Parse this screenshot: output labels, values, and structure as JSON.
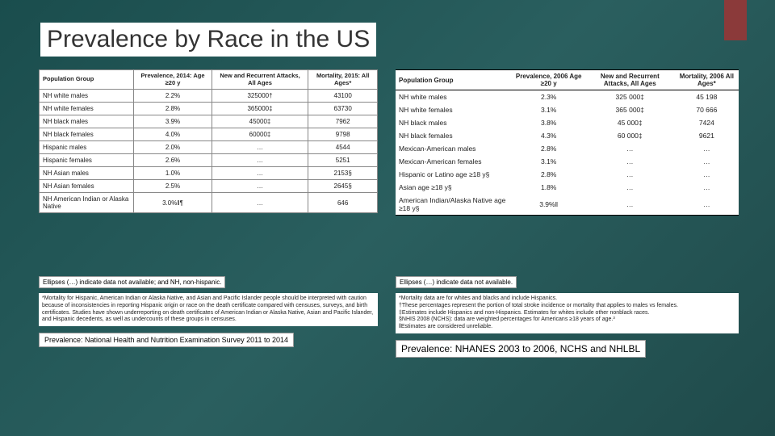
{
  "slide": {
    "title": "Prevalence by Race in the US"
  },
  "left": {
    "headers": [
      "Population Group",
      "Prevalence, 2014: Age ≥20 y",
      "New and Recurrent Attacks, All Ages",
      "Mortality, 2015: All Ages*"
    ],
    "rows": [
      [
        "NH white males",
        "2.2%",
        "325000†",
        "43100"
      ],
      [
        "NH white females",
        "2.8%",
        "365000‡",
        "63730"
      ],
      [
        "NH black males",
        "3.9%",
        "45000‡",
        "7962"
      ],
      [
        "NH black females",
        "4.0%",
        "60000‡",
        "9798"
      ],
      [
        "Hispanic males",
        "2.0%",
        "…",
        "4544"
      ],
      [
        "Hispanic females",
        "2.6%",
        "…",
        "5251"
      ],
      [
        "NH Asian males",
        "1.0%",
        "…",
        "2153§"
      ],
      [
        "NH Asian females",
        "2.5%",
        "…",
        "2645§"
      ],
      [
        "NH American Indian or Alaska Native",
        "3.0%‖¶",
        "…",
        "646"
      ]
    ],
    "ellipses_note": "Ellipses (…) indicate data not available; and NH, non-hispanic.",
    "footnotes": "*Mortality for Hispanic, American Indian or Alaska Native, and Asian and Pacific Islander people should be interpreted with caution because of inconsistencies in reporting Hispanic origin or race on the death certificate compared with censuses, surveys, and birth certificates. Studies have shown underreporting on death certificates of American Indian or Alaska Native, Asian and Pacific Islander, and Hispanic decedents, as well as undercounts of these groups in censuses.",
    "source": "Prevalence: National Health and Nutrition Examination Survey 2011 to 2014"
  },
  "right": {
    "headers": [
      "Population Group",
      "Prevalence, 2006 Age ≥20 y",
      "New and Recurrent Attacks, All Ages",
      "Mortality, 2006 All Ages*"
    ],
    "rows": [
      [
        "NH white males",
        "2.3%",
        "325 000‡",
        "45 198"
      ],
      [
        "NH white females",
        "3.1%",
        "365 000‡",
        "70 666"
      ],
      [
        "NH black males",
        "3.8%",
        "45 000‡",
        "7424"
      ],
      [
        "NH black females",
        "4.3%",
        "60 000‡",
        "9621"
      ],
      [
        "Mexican-American males",
        "2.8%",
        "…",
        "…"
      ],
      [
        "Mexican-American females",
        "3.1%",
        "…",
        "…"
      ],
      [
        "Hispanic or Latino age ≥18 y§",
        "2.8%",
        "…",
        "…"
      ],
      [
        "Asian age ≥18 y§",
        "1.8%",
        "…",
        "…"
      ],
      [
        "American Indian/Alaska Native age ≥18 y§",
        "3.9%‖",
        "…",
        "…"
      ]
    ],
    "ellipses_note": "Ellipses (…) indicate data not available.",
    "footnotes": "*Mortality data are for whites and blacks and include Hispanics.\n†These percentages represent the portion of total stroke incidence or mortality that applies to males vs females.\n‡Estimates include Hispanics and non-Hispanics. Estimates for whites include other nonblack races.\n§NHIS 2008 (NCHS): data are weighted percentages for Americans ≥18 years of age.³\n‖Estimates are considered unreliable.",
    "source": "Prevalence: NHANES 2003 to 2006, NCHS and NHLBL"
  }
}
